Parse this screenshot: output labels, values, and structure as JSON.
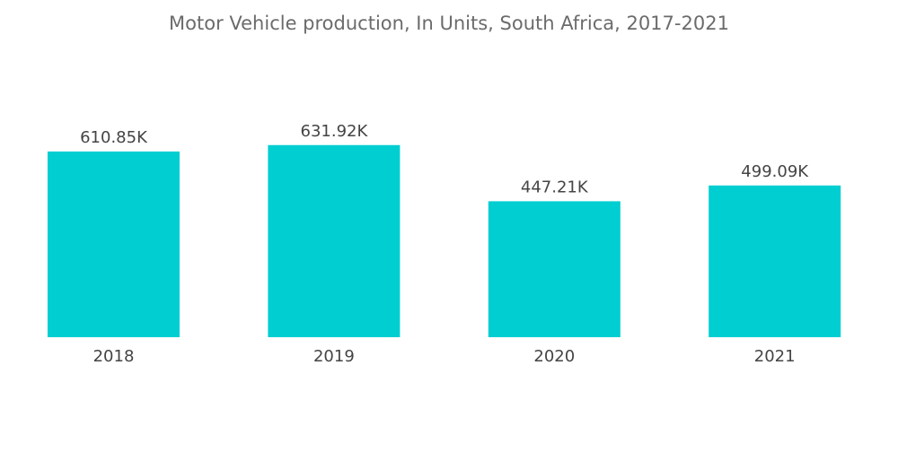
{
  "chart_data": {
    "type": "bar",
    "title": "Motor Vehicle production, In Units, South Africa, 2017-2021",
    "categories": [
      "2018",
      "2019",
      "2020",
      "2021"
    ],
    "values": [
      610.85,
      631.92,
      447.21,
      499.09
    ],
    "data_labels": [
      "610.85K",
      "631.92K",
      "447.21K",
      "499.09K"
    ],
    "unit": "K units",
    "xlabel": "",
    "ylabel": "",
    "ylim": [
      0,
      700
    ],
    "grid": false,
    "legend": "none",
    "bar_color": "#00CED1"
  }
}
